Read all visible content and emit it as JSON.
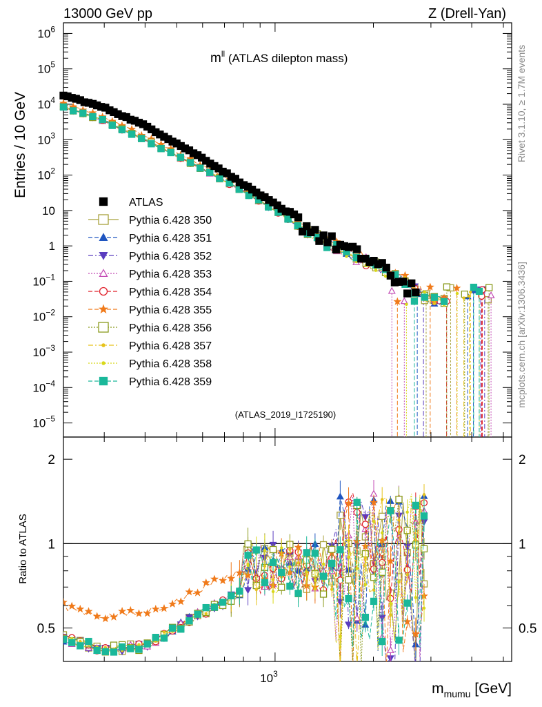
{
  "header": {
    "left": "13000 GeV pp",
    "right": "Z (Drell-Yan)"
  },
  "title": {
    "main": "m",
    "sup": "ll",
    "rest": " (ATLAS dilepton mass)"
  },
  "watermark": "(ATLAS_2019_I1725190)",
  "side_labels": {
    "rivet": "Rivet 3.1.10, ≥ 1.7M events",
    "mcplots": "mcplots.cern.ch [arXiv:1306.3436]"
  },
  "axes": {
    "main_ylabel": "Entries / 10 GeV",
    "ratio_ylabel": "Ratio to ATLAS",
    "xlabel_main": "m",
    "xlabel_sub": "mumu",
    "xlabel_unit": " [GeV]",
    "x_tick_label": "10",
    "x_tick_exp": "3",
    "main_ticks": [
      {
        "base": "10",
        "exp": "6"
      },
      {
        "base": "10",
        "exp": "5"
      },
      {
        "base": "10",
        "exp": "4"
      },
      {
        "base": "10",
        "exp": "3"
      },
      {
        "base": "10",
        "exp": "2"
      },
      {
        "base": "10",
        "exp": ""
      },
      {
        "base": "1",
        "exp": ""
      },
      {
        "base": "10",
        "exp": "−1"
      },
      {
        "base": "10",
        "exp": "−2"
      },
      {
        "base": "10",
        "exp": "−3"
      },
      {
        "base": "10",
        "exp": "−4"
      },
      {
        "base": "10",
        "exp": "−5"
      }
    ],
    "ratio_ticks": [
      "2",
      "1",
      "0.5"
    ]
  },
  "legend": [
    {
      "label": "ATLAS",
      "color": "#000000",
      "marker": "square-filled",
      "dash": "none"
    },
    {
      "label": "Pythia 6.428 350",
      "color": "#a8a23c",
      "marker": "square-open",
      "dash": "solid"
    },
    {
      "label": "Pythia 6.428 351",
      "color": "#1f55c0",
      "marker": "triangle-up-filled",
      "dash": "dashed"
    },
    {
      "label": "Pythia 6.428 352",
      "color": "#5a3dbf",
      "marker": "triangle-down-filled",
      "dash": "dashdot"
    },
    {
      "label": "Pythia 6.428 353",
      "color": "#c24ab4",
      "marker": "triangle-up-open",
      "dash": "dotted"
    },
    {
      "label": "Pythia 6.428 354",
      "color": "#e0202a",
      "marker": "circle-open",
      "dash": "dashed"
    },
    {
      "label": "Pythia 6.428 355",
      "color": "#f07a1a",
      "marker": "star-filled",
      "dash": "dashed"
    },
    {
      "label": "Pythia 6.428 356",
      "color": "#8a9a1c",
      "marker": "square-open",
      "dash": "dotted"
    },
    {
      "label": "Pythia 6.428 357",
      "color": "#e6c21a",
      "marker": "dot",
      "dash": "dashdot"
    },
    {
      "label": "Pythia 6.428 358",
      "color": "#d8d81a",
      "marker": "dot",
      "dash": "dotted"
    },
    {
      "label": "Pythia 6.428 359",
      "color": "#1ab89a",
      "marker": "square-filled",
      "dash": "dashed"
    }
  ],
  "chart_data": [
    {
      "type": "scatter",
      "panel": "main",
      "xlabel": "m_mumu [GeV]",
      "ylabel": "Entries / 10 GeV",
      "xscale": "log",
      "yscale": "log",
      "xlim": [
        225,
        5300
      ],
      "ylim": [
        4e-06,
        2000000
      ],
      "x_ticks": [
        1000
      ],
      "series": [
        {
          "name": "ATLAS",
          "x": [
            225,
            300,
            400,
            600,
            800,
            1000,
            1200,
            1500,
            2000,
            2500,
            3000
          ],
          "values": [
            18000,
            8000,
            2500,
            300,
            55,
            15,
            4.5,
            1.3,
            0.35,
            0.08,
            0.05
          ]
        },
        {
          "name": "Pythia 6.428 350",
          "x": [
            225,
            300,
            400,
            600,
            800,
            1000,
            1200,
            1500,
            2000,
            2500,
            3000
          ],
          "values": [
            8500,
            3400,
            1000,
            150,
            35,
            10,
            3.3,
            1.0,
            0.3,
            0.1,
            0.03
          ]
        },
        {
          "name": "Pythia 6.428 355",
          "x": [
            225,
            300,
            400,
            600,
            800,
            1000,
            1200,
            1500,
            2000,
            2500,
            3000
          ],
          "values": [
            11000,
            4400,
            1300,
            190,
            42,
            11,
            3.6,
            1.1,
            0.3,
            0.1,
            0.03
          ]
        }
      ]
    },
    {
      "type": "scatter",
      "panel": "ratio",
      "xlabel": "m_mumu [GeV]",
      "ylabel": "Ratio to ATLAS",
      "xscale": "log",
      "yscale": "log",
      "xlim": [
        225,
        5300
      ],
      "ylim": [
        0.38,
        2.4
      ],
      "reference_line": 1,
      "series": [
        {
          "name": "Pythia 6.428 355",
          "x": [
            225,
            300,
            400,
            500,
            600,
            700,
            800
          ],
          "values": [
            0.6,
            0.55,
            0.57,
            0.62,
            0.7,
            0.75,
            0.8
          ]
        },
        {
          "name": "Pythia 6.428 350",
          "x": [
            225,
            300,
            400,
            500,
            600,
            700,
            800
          ],
          "values": [
            0.46,
            0.42,
            0.43,
            0.5,
            0.57,
            0.62,
            0.68
          ]
        }
      ]
    }
  ]
}
